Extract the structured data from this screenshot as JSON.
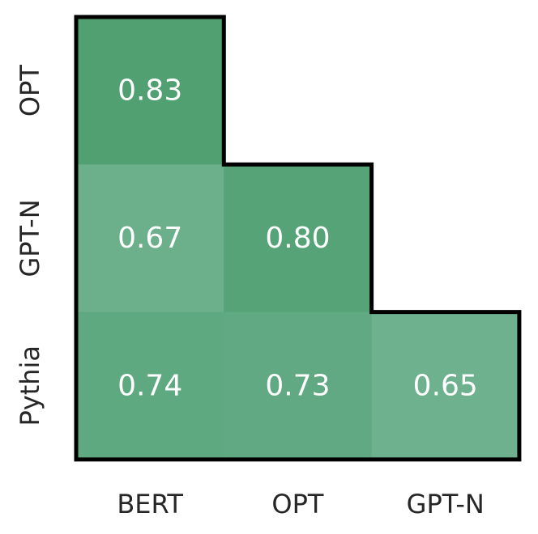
{
  "chart_data": {
    "type": "heatmap",
    "title": "",
    "xlabel": "",
    "ylabel": "",
    "x_categories": [
      "BERT",
      "OPT",
      "GPT-N"
    ],
    "y_categories": [
      "OPT",
      "GPT-N",
      "Pythia"
    ],
    "values": [
      [
        0.83,
        null,
        null
      ],
      [
        0.67,
        0.8,
        null
      ],
      [
        0.74,
        0.73,
        0.65
      ]
    ],
    "value_labels": [
      [
        "0.83",
        "",
        ""
      ],
      [
        "0.67",
        "0.80",
        ""
      ],
      [
        "0.74",
        "0.73",
        "0.65"
      ]
    ],
    "mask": "upper-triangle",
    "colormap": {
      "low_color": "#6eb18e",
      "high_color": "#50a072",
      "vmin": 0.65,
      "vmax": 0.83
    },
    "grid": false,
    "legend": "none"
  }
}
